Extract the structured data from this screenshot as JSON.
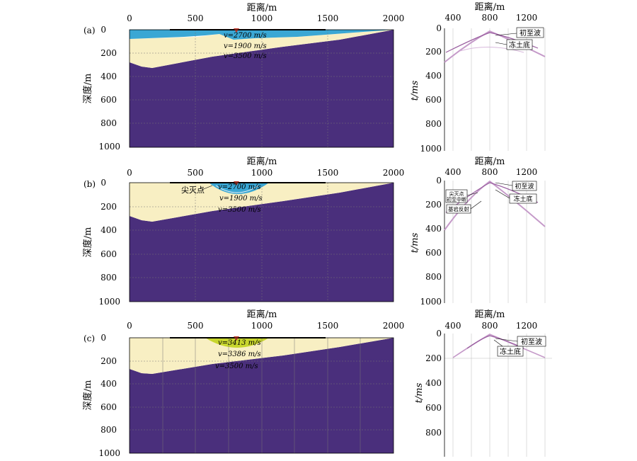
{
  "panels": [
    {
      "label": "(a)",
      "model": {
        "xlabel": "距离/m",
        "ylabel": "深度/m",
        "xticks": [
          "0",
          "500",
          "1000",
          "1500",
          "2000"
        ],
        "yticks": [
          "0",
          "200",
          "400",
          "600",
          "800",
          "1000"
        ],
        "velocities": [
          "v=2700 m/s",
          "v=1900 m/s",
          "v=3500 m/s"
        ],
        "annotation": "",
        "layer_colors": [
          "#3aa7d4",
          "#f8efc3",
          "#4a2f7c"
        ]
      },
      "record": {
        "xlabel": "距离/m",
        "ylabel": "t/ms",
        "xticks": [
          "400",
          "800",
          "1200"
        ],
        "yticks": [
          "0",
          "200",
          "400",
          "600",
          "800",
          "1000"
        ],
        "labels": [
          "初至波",
          "冻土底"
        ]
      }
    },
    {
      "label": "(b)",
      "model": {
        "xlabel": "距离/m",
        "ylabel": "深度/m",
        "xticks": [
          "0",
          "500",
          "1000",
          "1500",
          "2000"
        ],
        "yticks": [
          "0",
          "200",
          "400",
          "600",
          "800",
          "1000"
        ],
        "velocities": [
          "v=2700 m/s",
          "v=1900 m/s",
          "v=3500 m/s"
        ],
        "annotation": "尖灭点",
        "layer_colors": [
          "#3aa7d4",
          "#f8efc3",
          "#4a2f7c"
        ]
      },
      "record": {
        "xlabel": "距离/m",
        "ylabel": "t/ms",
        "xticks": [
          "400",
          "800",
          "1200"
        ],
        "yticks": [
          "0",
          "200",
          "400",
          "600",
          "800",
          "1000"
        ],
        "labels": [
          "初至波",
          "冻土底",
          "尖灭点",
          "初至中断",
          "基岩反射"
        ]
      }
    },
    {
      "label": "(c)",
      "model": {
        "xlabel": "距离/m",
        "ylabel": "深度/m",
        "xticks": [
          "0",
          "500",
          "1000",
          "1500",
          "2000"
        ],
        "yticks": [
          "0",
          "200",
          "400",
          "600",
          "800",
          "1000"
        ],
        "velocities": [
          "v=3413 m/s",
          "v=3386 m/s",
          "v=3500 m/s"
        ],
        "annotation": "",
        "layer_colors": [
          "#c8d62e",
          "#f8efc3",
          "#4a2f7c"
        ]
      },
      "record": {
        "xlabel": "距离/m",
        "ylabel": "t/ms",
        "xticks": [
          "400",
          "800",
          "1200"
        ],
        "yticks": [
          "0",
          "200",
          "400",
          "600",
          "800"
        ],
        "labels": [
          "初至波",
          "冻土底"
        ]
      }
    }
  ]
}
